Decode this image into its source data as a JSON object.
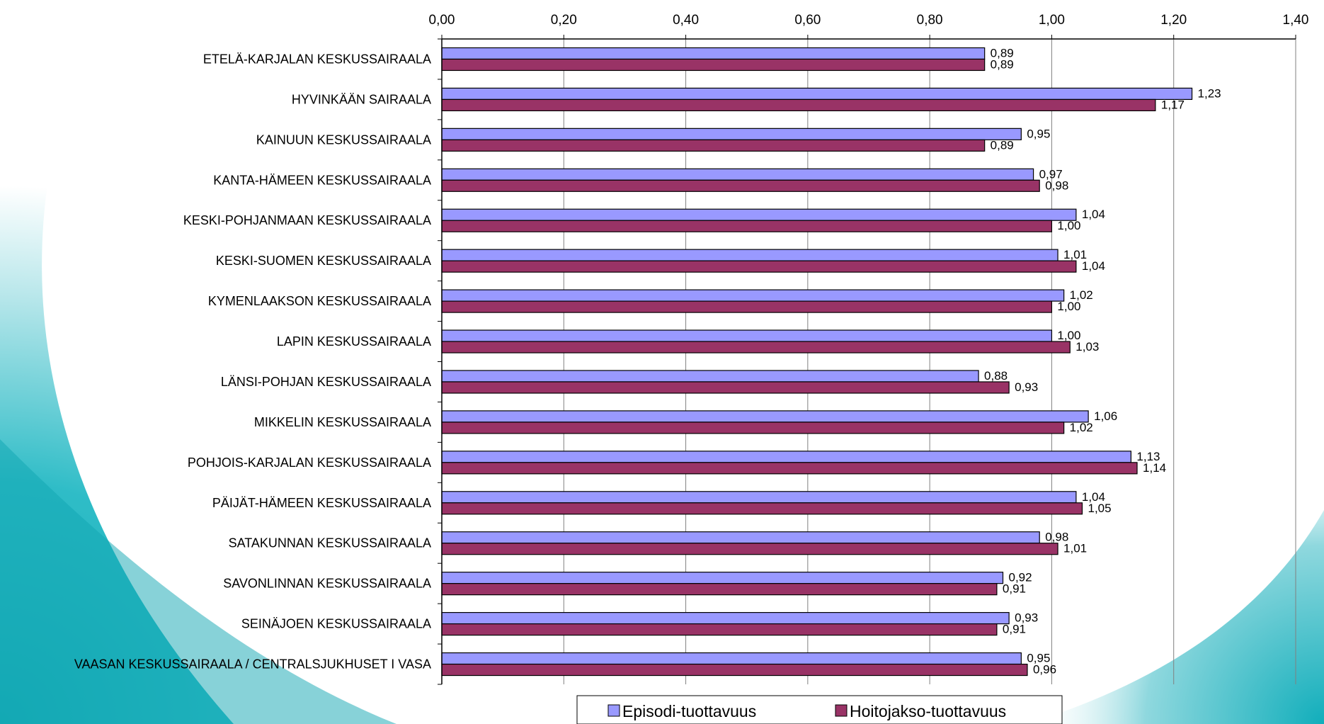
{
  "colors": {
    "episodi": "#9999ff",
    "hoitojakso": "#993366",
    "grid": "#808080",
    "axis": "#000000"
  },
  "chart_data": {
    "type": "bar",
    "orientation": "horizontal",
    "title": "",
    "xlabel": "",
    "ylabel": "",
    "xlim": [
      0,
      1.4
    ],
    "xticks": [
      "0,00",
      "0,20",
      "0,40",
      "0,60",
      "0,80",
      "1,00",
      "1,20",
      "1,40"
    ],
    "grid": true,
    "legend_position": "bottom",
    "categories": [
      "ETELÄ-KARJALAN KESKUSSAIRAALA",
      "HYVINKÄÄN SAIRAALA",
      "KAINUUN KESKUSSAIRAALA",
      "KANTA-HÄMEEN KESKUSSAIRAALA",
      "KESKI-POHJANMAAN KESKUSSAIRAALA",
      "KESKI-SUOMEN KESKUSSAIRAALA",
      "KYMENLAAKSON KESKUSSAIRAALA",
      "LAPIN KESKUSSAIRAALA",
      "LÄNSI-POHJAN KESKUSSAIRAALA",
      "MIKKELIN KESKUSSAIRAALA",
      "POHJOIS-KARJALAN KESKUSSAIRAALA",
      "PÄIJÄT-HÄMEEN KESKUSSAIRAALA",
      "SATAKUNNAN KESKUSSAIRAALA",
      "SAVONLINNAN KESKUSSAIRAALA",
      "SEINÄJOEN KESKUSSAIRAALA",
      "VAASAN KESKUSSAIRAALA / CENTRALSJUKHUSET I VASA"
    ],
    "series": [
      {
        "name": "Episodi-tuottavuus",
        "values": [
          0.89,
          1.23,
          0.95,
          0.97,
          1.04,
          1.01,
          1.02,
          1.0,
          0.88,
          1.06,
          1.13,
          1.04,
          0.98,
          0.92,
          0.93,
          0.95
        ],
        "labels": [
          "0,89",
          "1,23",
          "0,95",
          "0,97",
          "1,04",
          "1,01",
          "1,02",
          "1,00",
          "0,88",
          "1,06",
          "1,13",
          "1,04",
          "0,98",
          "0,92",
          "0,93",
          "0,95"
        ]
      },
      {
        "name": "Hoitojakso-tuottavuus",
        "values": [
          0.89,
          1.17,
          0.89,
          0.98,
          1.0,
          1.04,
          1.0,
          1.03,
          0.93,
          1.02,
          1.14,
          1.05,
          1.01,
          0.91,
          0.91,
          0.96
        ],
        "labels": [
          "0,89",
          "1,17",
          "0,89",
          "0,98",
          "1,00",
          "1,04",
          "1,00",
          "1,03",
          "0,93",
          "1,02",
          "1,14",
          "1,05",
          "1,01",
          "0,91",
          "0,91",
          "0,96"
        ]
      }
    ]
  }
}
